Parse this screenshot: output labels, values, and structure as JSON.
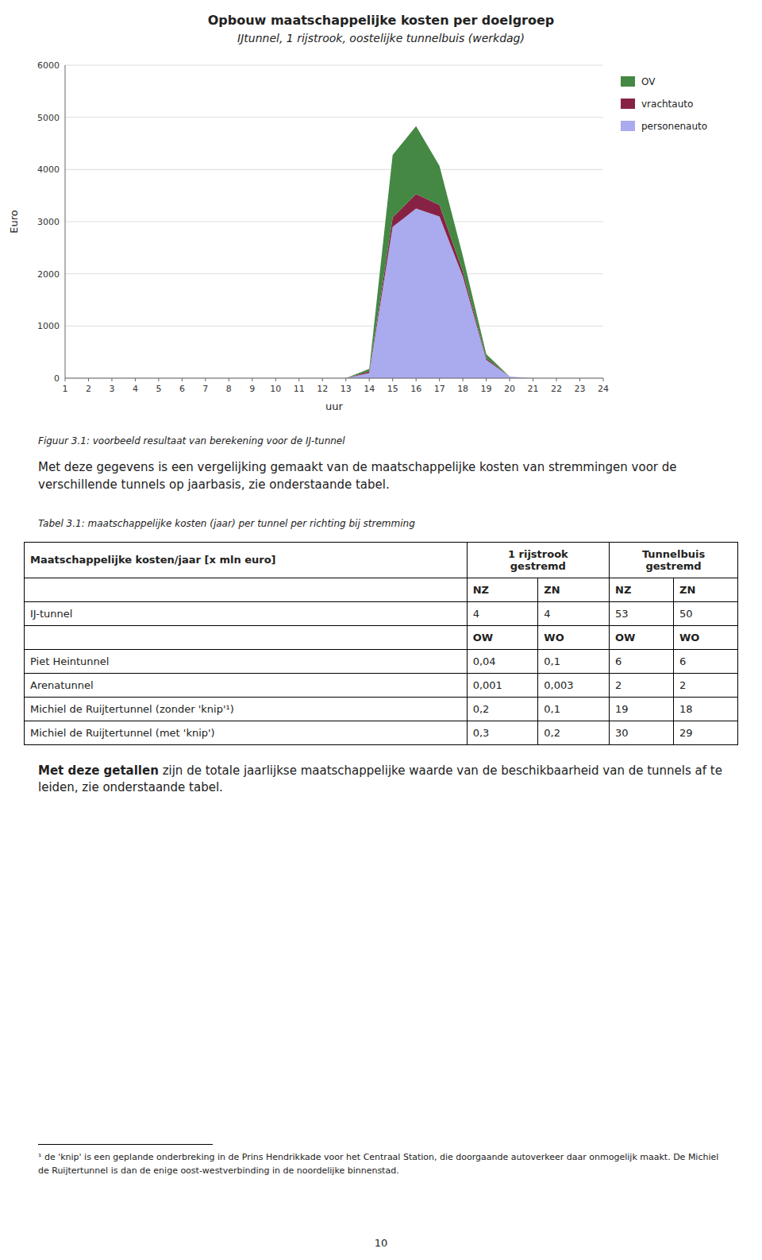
{
  "chart_data": {
    "type": "area",
    "stacked": true,
    "title": "Opbouw maatschappelijke kosten per doelgroep",
    "subtitle": "IJtunnel, 1 rijstrook, oostelijke tunnelbuis (werkdag)",
    "x_label": "uur",
    "y_label": "Euro",
    "x": [
      1,
      2,
      3,
      4,
      5,
      6,
      7,
      8,
      9,
      10,
      11,
      12,
      13,
      14,
      15,
      16,
      17,
      18,
      19,
      20,
      21,
      22,
      23,
      24
    ],
    "series": [
      {
        "name": "personenauto",
        "color": "#aaaaee",
        "values": [
          0,
          0,
          0,
          0,
          0,
          0,
          0,
          0,
          0,
          0,
          0,
          0,
          0,
          100,
          2900,
          3250,
          3100,
          1950,
          350,
          30,
          0,
          0,
          0,
          0
        ]
      },
      {
        "name": "vrachtauto",
        "color": "#882244",
        "values": [
          0,
          0,
          0,
          0,
          0,
          0,
          0,
          0,
          0,
          0,
          0,
          0,
          0,
          30,
          180,
          280,
          220,
          90,
          30,
          0,
          0,
          0,
          0,
          0
        ]
      },
      {
        "name": "OV",
        "color": "#448844",
        "values": [
          0,
          0,
          0,
          0,
          0,
          0,
          0,
          0,
          0,
          0,
          0,
          0,
          0,
          50,
          1200,
          1300,
          750,
          300,
          80,
          0,
          0,
          0,
          0,
          0
        ]
      }
    ],
    "xlim": [
      1,
      24
    ],
    "xticks": [
      1,
      2,
      3,
      4,
      5,
      6,
      7,
      8,
      9,
      10,
      11,
      12,
      13,
      14,
      15,
      16,
      17,
      18,
      19,
      20,
      21,
      22,
      23,
      24
    ],
    "ylim": [
      0,
      6000
    ],
    "yticks": [
      0,
      1000,
      2000,
      3000,
      4000,
      5000,
      6000
    ],
    "grid": true,
    "legend": "right"
  },
  "page": {
    "figure_caption": "Figuur 3.1: voorbeeld resultaat van berekening voor de IJ-tunnel",
    "para1": "Met deze gegevens is een vergelijking gemaakt van de maatschappelijke kosten van stremmingen voor de verschillende tunnels op jaarbasis, zie onderstaande tabel.",
    "table_caption": "Tabel 3.1: maatschappelijke kosten (jaar) per tunnel per richting bij stremming",
    "table": {
      "header": "Maatschappelijke kosten/jaar [x mln euro]",
      "groups": [
        {
          "lines": [
            "1 rijstrook",
            "gestremd"
          ]
        },
        {
          "lines": [
            "Tunnelbuis",
            "gestremd"
          ]
        }
      ],
      "rows": [
        {
          "directions": [
            "NZ",
            "ZN",
            "NZ",
            "ZN"
          ]
        },
        {
          "label": "IJ-tunnel",
          "cells": [
            "4",
            "4",
            "53",
            "50"
          ]
        },
        {
          "directions": [
            "OW",
            "WO",
            "OW",
            "WO"
          ]
        },
        {
          "label": "Piet Heintunnel",
          "cells": [
            "0,04",
            "0,1",
            "6",
            "6"
          ]
        },
        {
          "label": "Arenatunnel",
          "cells": [
            "0,001",
            "0,003",
            "2",
            "2"
          ]
        },
        {
          "label": "Michiel de Ruijtertunnel (zonder 'knip'¹)",
          "cells": [
            "0,2",
            "0,1",
            "19",
            "18"
          ]
        },
        {
          "label": "Michiel de Ruijtertunnel (met 'knip')",
          "cells": [
            "0,3",
            "0,2",
            "30",
            "29"
          ]
        }
      ]
    },
    "para2_bold": "Met deze getallen",
    "para2_rest": " zijn de totale jaarlijkse maatschappelijke waarde van de beschikbaarheid van de tunnels af te leiden, zie onderstaande tabel.",
    "footnote": "¹ de 'knip' is een geplande onderbreking in de Prins Hendrikkade voor het Centraal Station, die doorgaande autoverkeer daar onmogelijk maakt. De Michiel de Ruijtertunnel is dan de enige oost-westverbinding in de noordelijke binnenstad.",
    "page_number": "10"
  }
}
